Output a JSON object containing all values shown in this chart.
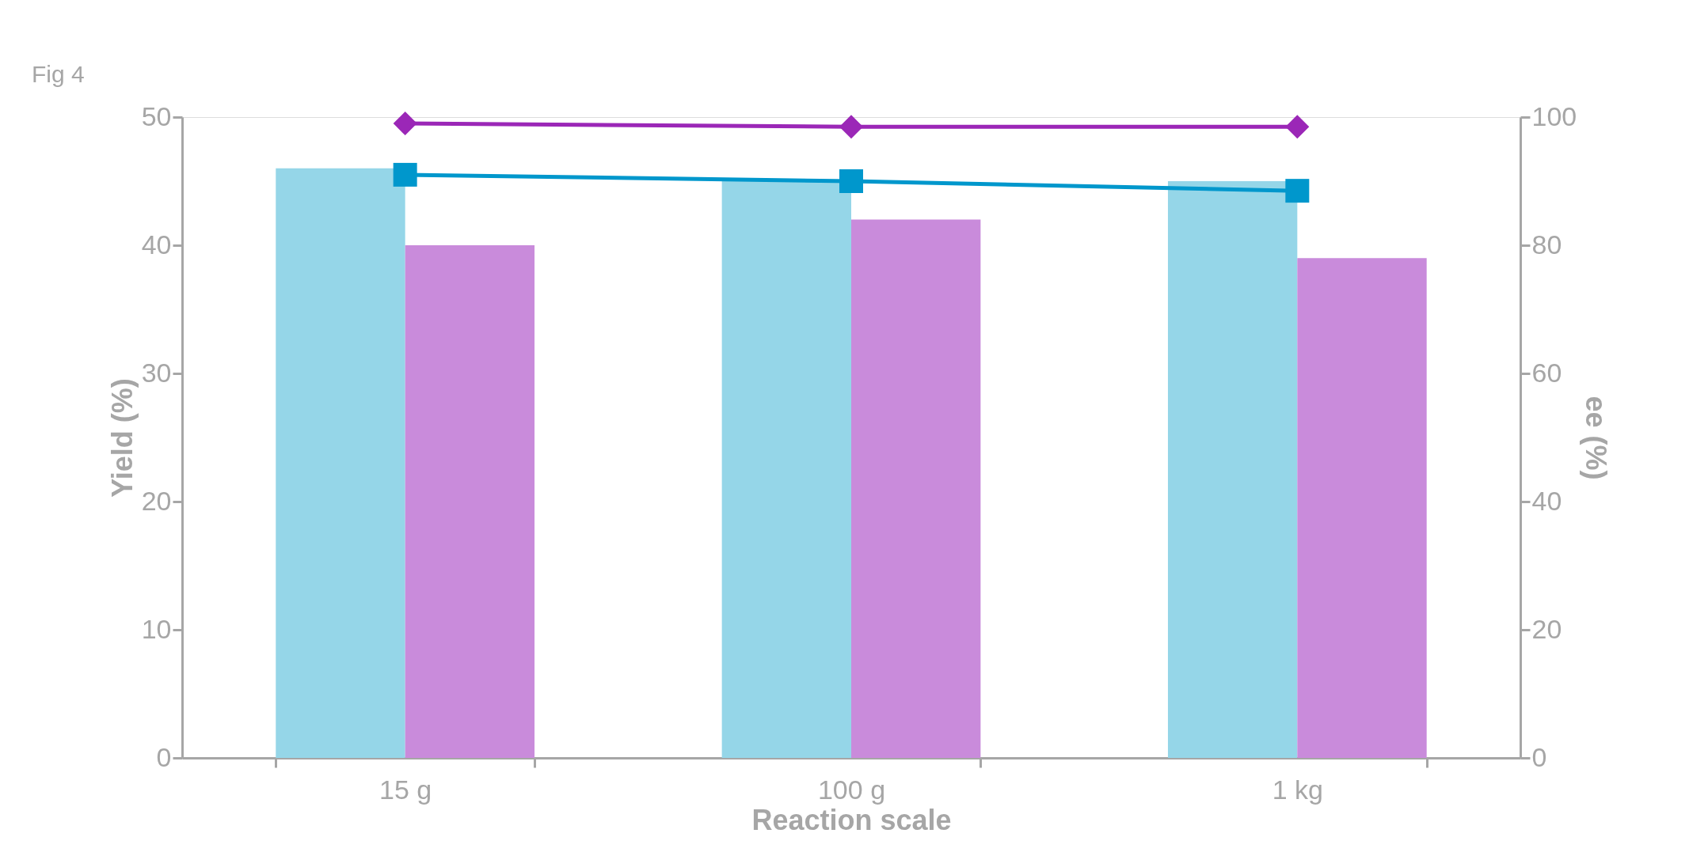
{
  "chart_data": {
    "type": "bar",
    "annotations": [
      "Fig 4"
    ],
    "xlabel": "Reaction scale",
    "ylabel": "Yield (%)",
    "y2label": "ee (%)",
    "categories": [
      "15 g",
      "100 g",
      "1 kg"
    ],
    "series": [
      {
        "color": "#95d6e8",
        "values": [
          46,
          45,
          45
        ]
      },
      {
        "color": "#c98bdb",
        "values": [
          40,
          42,
          39
        ]
      },
      {
        "type": "line",
        "axis": "y2",
        "marker": "diamond",
        "color": "#9b27b7",
        "values": [
          99,
          98.5,
          98.5
        ]
      },
      {
        "type": "line",
        "axis": "y2",
        "marker": "square",
        "color": "#0097cc",
        "values": [
          91,
          90,
          88.5
        ]
      }
    ],
    "ylim": [
      0,
      50
    ],
    "yticks": [
      0,
      10,
      20,
      30,
      40,
      50
    ],
    "y2lim": [
      0,
      100
    ],
    "y2ticks": [
      0,
      20,
      40,
      60,
      80,
      100
    ],
    "legend": false,
    "grid": false
  }
}
